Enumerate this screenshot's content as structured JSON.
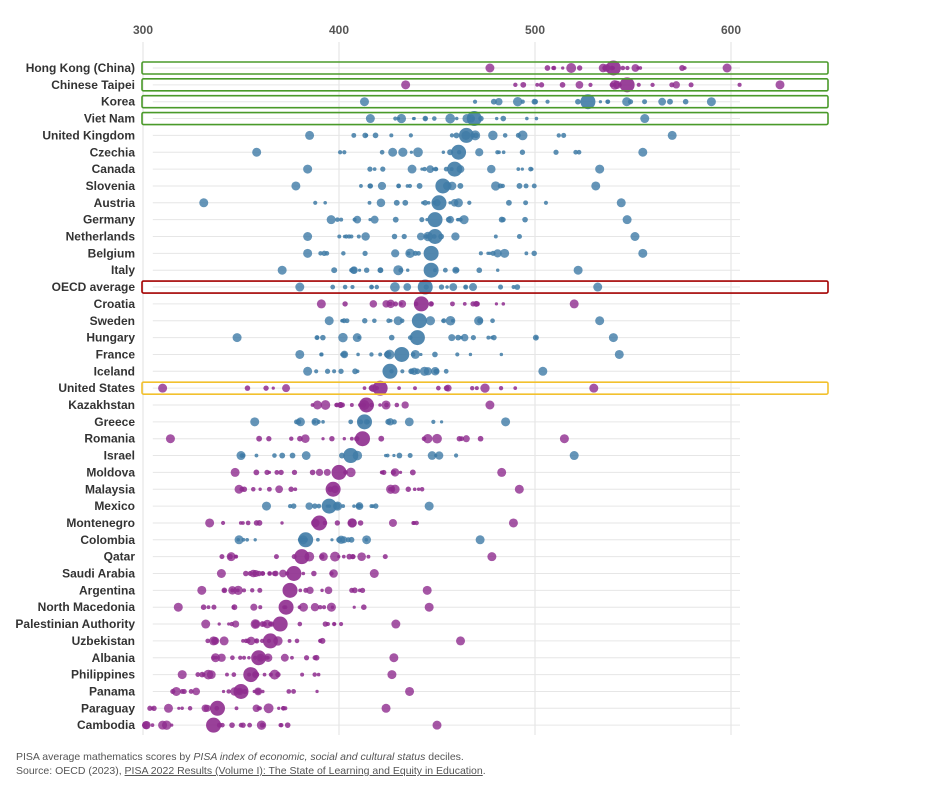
{
  "chart_data": {
    "type": "scatter",
    "description_text": {
      "caption_prefix": "PISA average mathematics scores by ",
      "caption_emph": "PISA index of economic, social and cultural status",
      "caption_suffix": " deciles.",
      "source_prefix": "Source: OECD (2023), ",
      "source_link": "PISA 2022 Results (Volume I): The State of Learning and Equity in Education",
      "source_suffix": "."
    },
    "xlim": [
      300,
      650
    ],
    "xticks": [
      "300",
      "400",
      "500",
      "600"
    ],
    "xtick_values": [
      300,
      400,
      500,
      600
    ],
    "colors": {
      "high": "#3f7ba6",
      "low": "#8e2c8e",
      "grid": "#e2e2e2",
      "row_line": "#e6e6e6"
    },
    "highlight_colors": {
      "green": "#4a9a2a",
      "red": "#a40000",
      "yellow": "#f2c12e"
    },
    "rows": [
      {
        "name": "Hong Kong (China)",
        "avg": 540,
        "low_outlier": 477,
        "high_outlier": 598,
        "group": "low",
        "highlight": "green"
      },
      {
        "name": "Chinese Taipei",
        "avg": 547,
        "low_outlier": 434,
        "high_outlier": 625,
        "group": "low",
        "highlight": "green"
      },
      {
        "name": "Korea",
        "avg": 527,
        "low_outlier": 413,
        "high_outlier": 590,
        "group": "high",
        "highlight": "green"
      },
      {
        "name": "Viet Nam",
        "avg": 469,
        "low_outlier": 416,
        "high_outlier": 556,
        "group": "high",
        "highlight": "green"
      },
      {
        "name": "United Kingdom",
        "avg": 465,
        "low_outlier": 385,
        "high_outlier": 570,
        "group": "high",
        "highlight": ""
      },
      {
        "name": "Czechia",
        "avg": 461,
        "low_outlier": 358,
        "high_outlier": 555,
        "group": "high",
        "highlight": ""
      },
      {
        "name": "Canada",
        "avg": 459,
        "low_outlier": 384,
        "high_outlier": 533,
        "group": "high",
        "highlight": ""
      },
      {
        "name": "Slovenia",
        "avg": 453,
        "low_outlier": 378,
        "high_outlier": 531,
        "group": "high",
        "highlight": ""
      },
      {
        "name": "Austria",
        "avg": 451,
        "low_outlier": 331,
        "high_outlier": 544,
        "group": "high",
        "highlight": ""
      },
      {
        "name": "Germany",
        "avg": 449,
        "low_outlier": 396,
        "high_outlier": 547,
        "group": "high",
        "highlight": ""
      },
      {
        "name": "Netherlands",
        "avg": 449,
        "low_outlier": 384,
        "high_outlier": 551,
        "group": "high",
        "highlight": ""
      },
      {
        "name": "Belgium",
        "avg": 447,
        "low_outlier": 384,
        "high_outlier": 555,
        "group": "high",
        "highlight": ""
      },
      {
        "name": "Italy",
        "avg": 447,
        "low_outlier": 371,
        "high_outlier": 522,
        "group": "high",
        "highlight": ""
      },
      {
        "name": "OECD average",
        "avg": 444,
        "low_outlier": 380,
        "high_outlier": 532,
        "group": "high",
        "highlight": "red"
      },
      {
        "name": "Croatia",
        "avg": 442,
        "low_outlier": 391,
        "high_outlier": 520,
        "group": "low",
        "highlight": ""
      },
      {
        "name": "Sweden",
        "avg": 441,
        "low_outlier": 395,
        "high_outlier": 533,
        "group": "high",
        "highlight": ""
      },
      {
        "name": "Hungary",
        "avg": 440,
        "low_outlier": 348,
        "high_outlier": 540,
        "group": "high",
        "highlight": ""
      },
      {
        "name": "France",
        "avg": 432,
        "low_outlier": 380,
        "high_outlier": 543,
        "group": "high",
        "highlight": ""
      },
      {
        "name": "Iceland",
        "avg": 426,
        "low_outlier": 384,
        "high_outlier": 504,
        "group": "high",
        "highlight": ""
      },
      {
        "name": "United States",
        "avg": 421,
        "low_outlier": 310,
        "high_outlier": 530,
        "group": "low",
        "highlight": "yellow"
      },
      {
        "name": "Kazakhstan",
        "avg": 414,
        "low_outlier": 389,
        "high_outlier": 477,
        "group": "low",
        "highlight": ""
      },
      {
        "name": "Greece",
        "avg": 413,
        "low_outlier": 357,
        "high_outlier": 485,
        "group": "high",
        "highlight": ""
      },
      {
        "name": "Romania",
        "avg": 412,
        "low_outlier": 314,
        "high_outlier": 515,
        "group": "low",
        "highlight": ""
      },
      {
        "name": "Israel",
        "avg": 406,
        "low_outlier": 350,
        "high_outlier": 520,
        "group": "high",
        "highlight": ""
      },
      {
        "name": "Moldova",
        "avg": 400,
        "low_outlier": 347,
        "high_outlier": 483,
        "group": "low",
        "highlight": ""
      },
      {
        "name": "Malaysia",
        "avg": 397,
        "low_outlier": 349,
        "high_outlier": 492,
        "group": "low",
        "highlight": ""
      },
      {
        "name": "Mexico",
        "avg": 395,
        "low_outlier": 363,
        "high_outlier": 446,
        "group": "high",
        "highlight": ""
      },
      {
        "name": "Montenegro",
        "avg": 390,
        "low_outlier": 334,
        "high_outlier": 489,
        "group": "low",
        "highlight": ""
      },
      {
        "name": "Colombia",
        "avg": 383,
        "low_outlier": 349,
        "high_outlier": 472,
        "group": "high",
        "highlight": ""
      },
      {
        "name": "Qatar",
        "avg": 381,
        "low_outlier": 345,
        "high_outlier": 478,
        "group": "low",
        "highlight": ""
      },
      {
        "name": "Saudi Arabia",
        "avg": 377,
        "low_outlier": 340,
        "high_outlier": 418,
        "group": "low",
        "highlight": ""
      },
      {
        "name": "Argentina",
        "avg": 375,
        "low_outlier": 330,
        "high_outlier": 445,
        "group": "low",
        "highlight": ""
      },
      {
        "name": "North Macedonia",
        "avg": 373,
        "low_outlier": 318,
        "high_outlier": 446,
        "group": "low",
        "highlight": ""
      },
      {
        "name": "Palestinian Authority",
        "avg": 370,
        "low_outlier": 332,
        "high_outlier": 429,
        "group": "low",
        "highlight": ""
      },
      {
        "name": "Uzbekistan",
        "avg": 365,
        "low_outlier": 336,
        "high_outlier": 462,
        "group": "low",
        "highlight": ""
      },
      {
        "name": "Albania",
        "avg": 359,
        "low_outlier": 337,
        "high_outlier": 428,
        "group": "low",
        "highlight": ""
      },
      {
        "name": "Philippines",
        "avg": 355,
        "low_outlier": 320,
        "high_outlier": 427,
        "group": "low",
        "highlight": ""
      },
      {
        "name": "Panama",
        "avg": 350,
        "low_outlier": 317,
        "high_outlier": 436,
        "group": "low",
        "highlight": ""
      },
      {
        "name": "Paraguay",
        "avg": 338,
        "low_outlier": 313,
        "high_outlier": 424,
        "group": "low",
        "highlight": ""
      },
      {
        "name": "Cambodia",
        "avg": 336,
        "low_outlier": 310,
        "high_outlier": 450,
        "group": "low",
        "highlight": ""
      }
    ]
  }
}
